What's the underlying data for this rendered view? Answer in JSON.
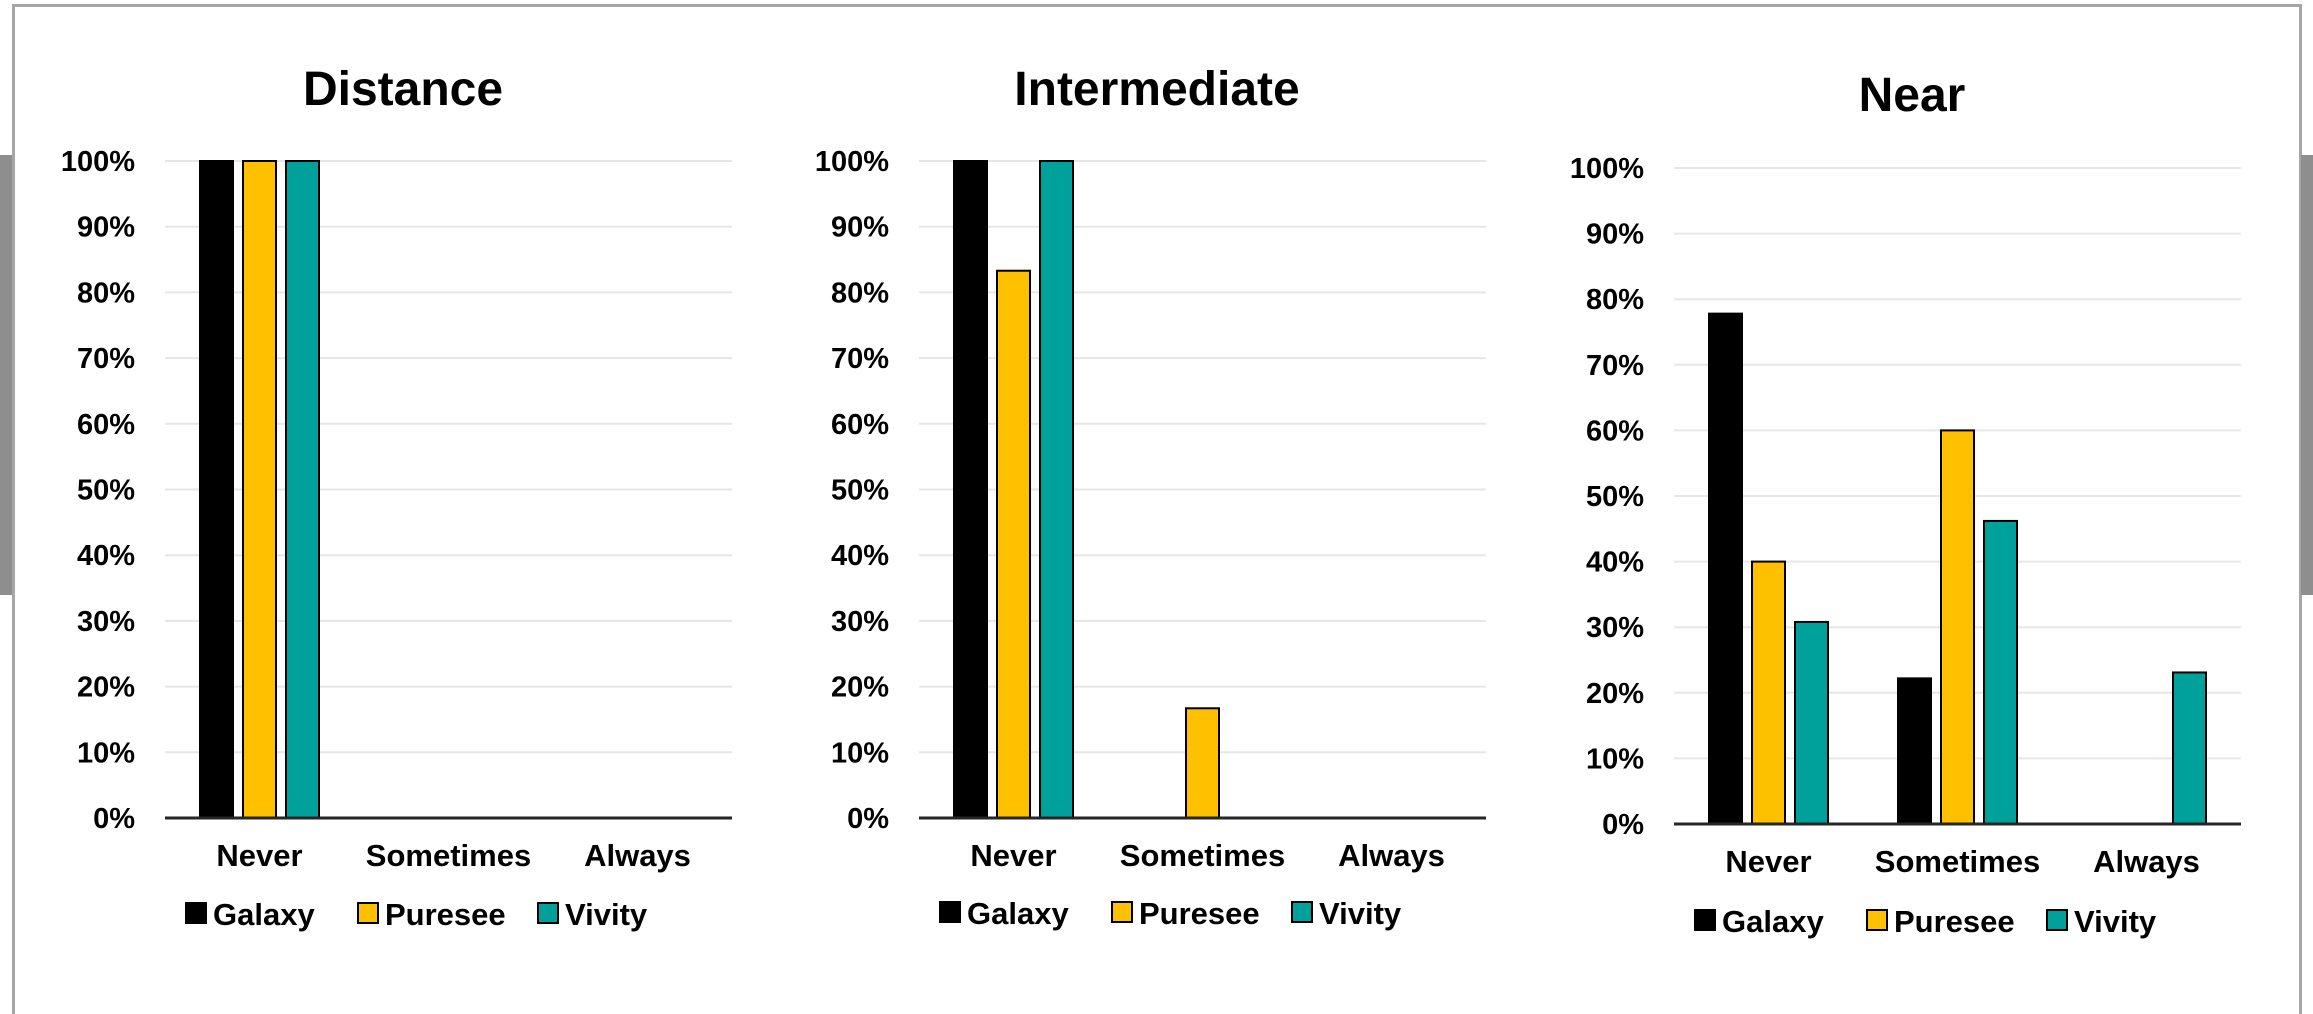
{
  "colors": {
    "Galaxy": "#000000",
    "Puresee": "#ffc000",
    "Vivity": "#00a19a",
    "grid": "#e6e6e6",
    "axis": "#262626"
  },
  "chart_data": [
    {
      "type": "bar",
      "title": "Distance",
      "categories": [
        "Never",
        "Sometimes",
        "Always"
      ],
      "series": [
        {
          "name": "Galaxy",
          "values": [
            100,
            0,
            0
          ]
        },
        {
          "name": "Puresee",
          "values": [
            100,
            0,
            0
          ]
        },
        {
          "name": "Vivity",
          "values": [
            100,
            0,
            0
          ]
        }
      ],
      "ylim": [
        0,
        100
      ],
      "yticks": [
        "0%",
        "10%",
        "20%",
        "30%",
        "40%",
        "50%",
        "60%",
        "70%",
        "80%",
        "90%",
        "100%"
      ],
      "grid": true,
      "legend": "bottom"
    },
    {
      "type": "bar",
      "title": "Intermediate",
      "categories": [
        "Never",
        "Sometimes",
        "Always"
      ],
      "series": [
        {
          "name": "Galaxy",
          "values": [
            100,
            0,
            0
          ]
        },
        {
          "name": "Puresee",
          "values": [
            83.3,
            16.7,
            0
          ]
        },
        {
          "name": "Vivity",
          "values": [
            100,
            0,
            0
          ]
        }
      ],
      "ylim": [
        0,
        100
      ],
      "yticks": [
        "0%",
        "10%",
        "20%",
        "30%",
        "40%",
        "50%",
        "60%",
        "70%",
        "80%",
        "90%",
        "100%"
      ],
      "grid": true,
      "legend": "bottom"
    },
    {
      "type": "bar",
      "title": "Near",
      "categories": [
        "Never",
        "Sometimes",
        "Always"
      ],
      "series": [
        {
          "name": "Galaxy",
          "values": [
            77.8,
            22.2,
            0
          ]
        },
        {
          "name": "Puresee",
          "values": [
            40,
            60,
            0
          ]
        },
        {
          "name": "Vivity",
          "values": [
            30.8,
            46.2,
            23.1
          ]
        }
      ],
      "ylim": [
        0,
        100
      ],
      "yticks": [
        "0%",
        "10%",
        "20%",
        "30%",
        "40%",
        "50%",
        "60%",
        "70%",
        "80%",
        "90%",
        "100%"
      ],
      "grid": true,
      "legend": "bottom"
    }
  ]
}
